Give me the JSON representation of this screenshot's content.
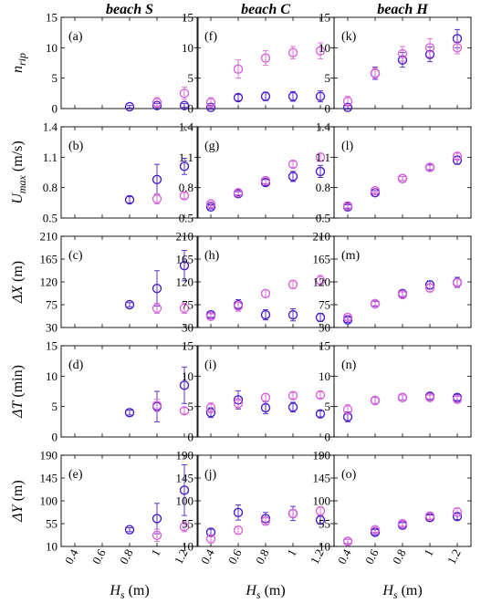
{
  "colors": {
    "series_a": "#4b1fc7",
    "series_b": "#d768d8"
  },
  "column_titles": [
    "beach S",
    "beach C",
    "beach H"
  ],
  "x_axis": {
    "label_main": "H",
    "label_sub": "s",
    "label_unit": "(m)",
    "range": [
      0.3,
      1.3
    ],
    "ticks": [
      0.4,
      0.6,
      0.8,
      1,
      1.2
    ],
    "tick_labels": [
      "0.4",
      "0.6",
      "0.8",
      "1",
      "1.2"
    ]
  },
  "rows": [
    {
      "label_main": "n",
      "label_sub": "rip",
      "label_unit": "",
      "ylim": [
        0,
        15
      ],
      "ticks": [
        0,
        5,
        10,
        15
      ],
      "tick_labels": [
        "0",
        "5",
        "10",
        "15"
      ]
    },
    {
      "label_main": "U",
      "label_sub": "max",
      "label_unit": " (m/s)",
      "ylim": [
        0.5,
        1.4
      ],
      "ticks": [
        0.5,
        0.8,
        1.1,
        1.4
      ],
      "tick_labels": [
        "0.5",
        "0.8",
        "1.1",
        "1.4"
      ]
    },
    {
      "label_main": "ΔX",
      "label_sub": "",
      "label_unit": " (m)",
      "ylim": [
        30,
        210
      ],
      "ticks": [
        30,
        75,
        120,
        165,
        210
      ],
      "tick_labels": [
        "30",
        "75",
        "120",
        "165",
        "210"
      ]
    },
    {
      "label_main": "ΔT",
      "label_sub": "",
      "label_unit": " (min)",
      "ylim": [
        0,
        15
      ],
      "ticks": [
        0,
        5,
        10,
        15
      ],
      "tick_labels": [
        "0",
        "5",
        "10",
        "15"
      ]
    },
    {
      "label_main": "ΔY",
      "label_sub": "",
      "label_unit": " (m)",
      "ylim": [
        10,
        190
      ],
      "ticks": [
        10,
        55,
        100,
        145,
        190
      ],
      "tick_labels": [
        "10",
        "55",
        "100",
        "145",
        "190"
      ]
    }
  ],
  "chart_data": {
    "type": "scatter",
    "panels": [
      {
        "label": "(a)",
        "row": 0,
        "col": 0,
        "series": [
          {
            "x": [
              0.8,
              1.0,
              1.2
            ],
            "y": [
              0.3,
              0.5,
              0.5
            ],
            "err": [
              0.2,
              0.3,
              0.3
            ]
          },
          {
            "x": [
              1.0,
              1.2
            ],
            "y": [
              1.0,
              2.5
            ],
            "err": [
              0.8,
              1.0
            ]
          }
        ]
      },
      {
        "label": "(b)",
        "row": 1,
        "col": 0,
        "series": [
          {
            "x": [
              0.8,
              1.0,
              1.2
            ],
            "y": [
              0.68,
              0.88,
              1.01
            ],
            "err": [
              0.03,
              0.15,
              0.08
            ]
          },
          {
            "x": [
              1.0,
              1.2
            ],
            "y": [
              0.69,
              0.72
            ],
            "err": [
              0.05,
              0.03
            ]
          }
        ]
      },
      {
        "label": "(c)",
        "row": 2,
        "col": 0,
        "series": [
          {
            "x": [
              0.8,
              1.0,
              1.2
            ],
            "y": [
              75,
              107,
              152
            ],
            "err": [
              4,
              35,
              30
            ]
          },
          {
            "x": [
              1.0,
              1.2
            ],
            "y": [
              68,
              68
            ],
            "err": [
              10,
              10
            ]
          }
        ]
      },
      {
        "label": "(d)",
        "row": 3,
        "col": 0,
        "series": [
          {
            "x": [
              0.8,
              1.0,
              1.2
            ],
            "y": [
              4.0,
              5.0,
              8.5
            ],
            "err": [
              0.4,
              2.5,
              3.0
            ]
          },
          {
            "x": [
              1.0,
              1.2
            ],
            "y": [
              5.2,
              4.3
            ],
            "err": [
              1.0,
              0.5
            ]
          }
        ]
      },
      {
        "label": "(e)",
        "row": 4,
        "col": 0,
        "series": [
          {
            "x": [
              0.8,
              1.0,
              1.2
            ],
            "y": [
              43,
              65,
              121
            ],
            "err": [
              4,
              30,
              50
            ]
          },
          {
            "x": [
              1.0,
              1.2
            ],
            "y": [
              32,
              49
            ],
            "err": [
              12,
              10
            ]
          }
        ]
      },
      {
        "label": "(f)",
        "row": 0,
        "col": 1,
        "series": [
          {
            "x": [
              0.4,
              0.6,
              0.8,
              1.0,
              1.2
            ],
            "y": [
              0.2,
              1.8,
              2.0,
              2.0,
              2.0
            ],
            "err": [
              0.3,
              0.5,
              0.7,
              0.8,
              0.9
            ]
          },
          {
            "x": [
              0.4,
              0.6,
              0.8,
              1.0,
              1.2
            ],
            "y": [
              1.0,
              6.5,
              8.3,
              9.2,
              9.5
            ],
            "err": [
              0.8,
              1.5,
              1.2,
              1.0,
              1.3
            ]
          }
        ]
      },
      {
        "label": "(g)",
        "row": 1,
        "col": 1,
        "series": [
          {
            "x": [
              0.4,
              0.6,
              0.8,
              1.0,
              1.2
            ],
            "y": [
              0.61,
              0.74,
              0.85,
              0.91,
              0.96
            ],
            "err": [
              0.02,
              0.02,
              0.03,
              0.05,
              0.06
            ]
          },
          {
            "x": [
              0.4,
              0.6,
              0.8,
              1.0,
              1.2
            ],
            "y": [
              0.64,
              0.75,
              0.87,
              1.03,
              1.1
            ],
            "err": [
              0.02,
              0.02,
              0.03,
              0.03,
              0.04
            ]
          }
        ]
      },
      {
        "label": "(h)",
        "row": 2,
        "col": 1,
        "series": [
          {
            "x": [
              0.4,
              0.6,
              0.8,
              1.0,
              1.2
            ],
            "y": [
              55,
              75,
              55,
              55,
              50
            ],
            "err": [
              5,
              10,
              10,
              12,
              8
            ]
          },
          {
            "x": [
              0.4,
              0.6,
              0.8,
              1.0,
              1.2
            ],
            "y": [
              52,
              72,
              97,
              115,
              123
            ],
            "err": [
              5,
              10,
              7,
              8,
              10
            ]
          }
        ]
      },
      {
        "label": "(i)",
        "row": 3,
        "col": 1,
        "series": [
          {
            "x": [
              0.4,
              0.6,
              0.8,
              1.0,
              1.2
            ],
            "y": [
              4.0,
              6.1,
              4.8,
              4.9,
              3.8
            ],
            "err": [
              0.8,
              1.5,
              1.0,
              0.8,
              0.5
            ]
          },
          {
            "x": [
              0.4,
              0.6,
              0.8,
              1.0,
              1.2
            ],
            "y": [
              4.8,
              5.5,
              6.5,
              6.8,
              6.9
            ],
            "err": [
              0.8,
              0.8,
              0.6,
              0.5,
              0.5
            ]
          }
        ]
      },
      {
        "label": "(j)",
        "row": 4,
        "col": 1,
        "series": [
          {
            "x": [
              0.4,
              0.6,
              0.8,
              1.0,
              1.2
            ],
            "y": [
              38,
              77,
              65,
              75,
              62
            ],
            "err": [
              6,
              15,
              12,
              14,
              8
            ]
          },
          {
            "x": [
              0.4,
              0.6,
              0.8,
              1.0,
              1.2
            ],
            "y": [
              25,
              42,
              60,
              75,
              80
            ],
            "err": [
              8,
              8,
              8,
              8,
              8
            ]
          }
        ]
      },
      {
        "label": "(k)",
        "row": 0,
        "col": 2,
        "series": [
          {
            "x": [
              0.4,
              0.6,
              0.8,
              1.0,
              1.2
            ],
            "y": [
              0.2,
              5.8,
              8.0,
              8.9,
              11.5
            ],
            "err": [
              0.3,
              1.0,
              1.2,
              1.2,
              1.5
            ]
          },
          {
            "x": [
              0.4,
              0.6,
              0.8,
              1.0,
              1.2
            ],
            "y": [
              1.2,
              5.8,
              9.0,
              10.0,
              10.0
            ],
            "err": [
              0.8,
              0.8,
              1.2,
              1.5,
              1.0
            ]
          }
        ]
      },
      {
        "label": "(l)",
        "row": 1,
        "col": 2,
        "series": [
          {
            "x": [
              0.4,
              0.6,
              0.8,
              1.0,
              1.2
            ],
            "y": [
              0.61,
              0.75,
              0.89,
              1.0,
              1.07
            ],
            "err": [
              0.02,
              0.02,
              0.02,
              0.03,
              0.04
            ]
          },
          {
            "x": [
              0.4,
              0.6,
              0.8,
              1.0,
              1.2
            ],
            "y": [
              0.62,
              0.77,
              0.89,
              1.0,
              1.11
            ],
            "err": [
              0.02,
              0.02,
              0.02,
              0.02,
              0.03
            ]
          }
        ]
      },
      {
        "label": "(m)",
        "row": 2,
        "col": 2,
        "series": [
          {
            "x": [
              0.4,
              0.6,
              0.8,
              1.0,
              1.2
            ],
            "y": [
              45,
              77,
              97,
              114,
              119
            ],
            "err": [
              5,
              5,
              6,
              8,
              10
            ]
          },
          {
            "x": [
              0.4,
              0.6,
              0.8,
              1.0,
              1.2
            ],
            "y": [
              50,
              77,
              95,
              108,
              118
            ],
            "err": [
              4,
              4,
              5,
              8,
              8
            ]
          }
        ]
      },
      {
        "label": "(n)",
        "row": 3,
        "col": 2,
        "series": [
          {
            "x": [
              0.4,
              0.6,
              0.8,
              1.0,
              1.2
            ],
            "y": [
              3.3,
              6.0,
              6.5,
              6.7,
              6.5
            ],
            "err": [
              0.8,
              0.5,
              0.4,
              0.5,
              0.5
            ]
          },
          {
            "x": [
              0.4,
              0.6,
              0.8,
              1.0,
              1.2
            ],
            "y": [
              4.5,
              6.0,
              6.5,
              6.5,
              6.2
            ],
            "err": [
              0.8,
              0.5,
              0.4,
              0.4,
              0.5
            ]
          }
        ]
      },
      {
        "label": "(o)",
        "row": 4,
        "col": 2,
        "series": [
          {
            "x": [
              0.4,
              0.6,
              0.8,
              1.0,
              1.2
            ],
            "y": [
              20,
              38,
              52,
              67,
              69
            ],
            "err": [
              4,
              5,
              5,
              5,
              6
            ]
          },
          {
            "x": [
              0.4,
              0.6,
              0.8,
              1.0,
              1.2
            ],
            "y": [
              20,
              43,
              55,
              70,
              78
            ],
            "err": [
              4,
              5,
              5,
              6,
              8
            ]
          }
        ]
      }
    ]
  }
}
